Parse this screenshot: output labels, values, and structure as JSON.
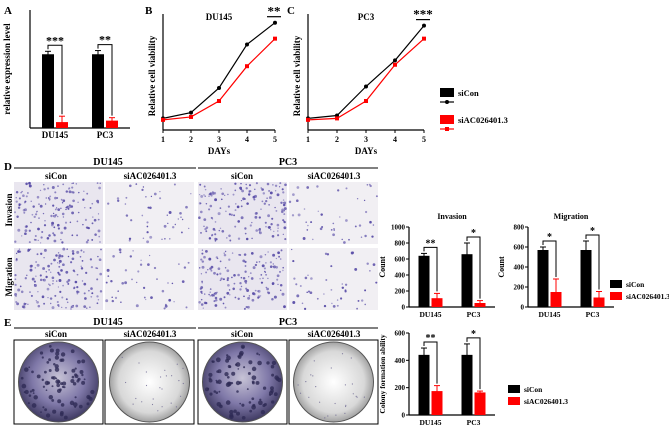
{
  "panels": {
    "A": "A",
    "B": "B",
    "C": "C",
    "D": "D",
    "E": "E"
  },
  "colors": {
    "siCon": "#000000",
    "siAC": "#ff0000",
    "dots": "#5b4fa8",
    "bg_invasion": "#e9e6ef",
    "bg_sparse": "#f1eff3"
  },
  "microscopy": {
    "group_labels": [
      "DU145",
      "PC3"
    ],
    "column_labels": [
      "siCon",
      "siAC026401.3",
      "siCon",
      "siAC026401.3"
    ],
    "row_labels": [
      "Invasion",
      "Migration"
    ]
  },
  "colony": {
    "group_labels": [
      "DU145",
      "PC3"
    ],
    "column_labels": [
      "siCon",
      "siAC026401.3",
      "siCon",
      "siAC026401.3"
    ]
  },
  "chart_data": [
    {
      "id": "A",
      "type": "bar",
      "ylabel": "relative expression level",
      "categories": [
        "DU145",
        "PC3"
      ],
      "series": [
        {
          "name": "siCon",
          "values": [
            1.0,
            1.0
          ],
          "errors": [
            0.04,
            0.05
          ]
        },
        {
          "name": "siAC026401.3",
          "values": [
            0.08,
            0.1
          ],
          "errors": [
            0.08,
            0.04
          ]
        }
      ],
      "ylim": [
        0,
        1.6
      ],
      "significance": [
        "***",
        "**"
      ]
    },
    {
      "id": "B",
      "type": "line",
      "title": "DU145",
      "xlabel": "DAYs",
      "ylabel": "Relative cell viability",
      "x": [
        1,
        2,
        3,
        4,
        5
      ],
      "xlim": [
        1,
        5
      ],
      "xticks": [
        "1",
        "2",
        "3",
        "4",
        "5"
      ],
      "series": [
        {
          "name": "siCon",
          "values": [
            0.4,
            0.6,
            1.45,
            2.95,
            3.7
          ]
        },
        {
          "name": "siAC026401.3",
          "values": [
            0.35,
            0.45,
            1.0,
            2.2,
            3.15
          ]
        }
      ],
      "ylim": [
        0,
        4
      ],
      "significance": "**"
    },
    {
      "id": "C",
      "type": "line",
      "title": "PC3",
      "xlabel": "DAYs",
      "ylabel": "Relative cell viability",
      "x": [
        1,
        2,
        3,
        4,
        5
      ],
      "xlim": [
        1,
        5
      ],
      "xticks": [
        "1",
        "2",
        "3",
        "4",
        "5"
      ],
      "series": [
        {
          "name": "siCon",
          "values": [
            0.4,
            0.5,
            1.5,
            2.4,
            3.6
          ]
        },
        {
          "name": "siAC026401.3",
          "values": [
            0.35,
            0.4,
            1.0,
            2.25,
            3.15
          ]
        }
      ],
      "ylim": [
        0,
        4
      ],
      "significance": "***",
      "legend": [
        "siCon",
        "siAC026401.3"
      ]
    },
    {
      "id": "D-invasion",
      "type": "bar",
      "title": "Invasion",
      "ylabel": "Count",
      "categories": [
        "DU145",
        "PC3"
      ],
      "yticks": [
        "0",
        "200",
        "400",
        "600",
        "800",
        "1000"
      ],
      "ylim": [
        0,
        1000
      ],
      "series": [
        {
          "name": "siCon",
          "values": [
            640,
            660
          ],
          "errors": [
            30,
            140
          ]
        },
        {
          "name": "siAC026401.3",
          "values": [
            110,
            50
          ],
          "errors": [
            60,
            30
          ]
        }
      ],
      "significance": [
        "**",
        "*"
      ]
    },
    {
      "id": "D-migration",
      "type": "bar",
      "title": "Migration",
      "ylabel": "Count",
      "categories": [
        "DU145",
        "PC3"
      ],
      "yticks": [
        "0",
        "200",
        "400",
        "600",
        "800"
      ],
      "ylim": [
        0,
        800
      ],
      "series": [
        {
          "name": "siCon",
          "values": [
            570,
            570
          ],
          "errors": [
            30,
            90
          ]
        },
        {
          "name": "siAC026401.3",
          "values": [
            150,
            95
          ],
          "errors": [
            130,
            60
          ]
        }
      ],
      "significance": [
        "*",
        "*"
      ],
      "legend": [
        "siCon",
        "siAC026401.3"
      ]
    },
    {
      "id": "E",
      "type": "bar",
      "ylabel": "Colony formation ability",
      "categories": [
        "DU145",
        "PC3"
      ],
      "yticks": [
        "0",
        "200",
        "400",
        "600"
      ],
      "ylim": [
        0,
        600
      ],
      "series": [
        {
          "name": "siCon",
          "values": [
            440,
            440
          ],
          "errors": [
            50,
            80
          ]
        },
        {
          "name": "siAC026401.3",
          "values": [
            175,
            165
          ],
          "errors": [
            40,
            10
          ]
        }
      ],
      "significance": [
        "**",
        "*"
      ],
      "legend": [
        "siCon",
        "siAC026401.3"
      ]
    }
  ]
}
